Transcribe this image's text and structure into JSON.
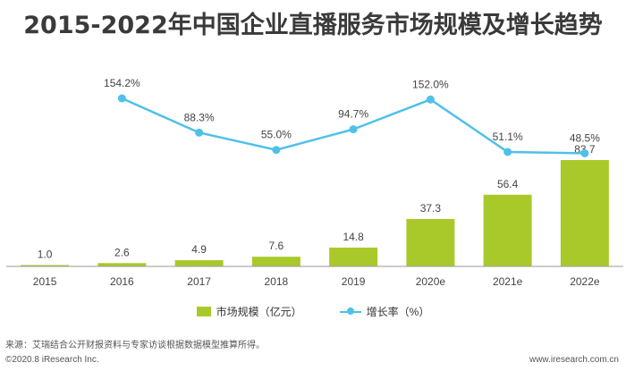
{
  "title": "2015-2022年中国企业直播服务市场规模及增长趋势",
  "chart_data": {
    "type": "bar",
    "categories": [
      "2015",
      "2016",
      "2017",
      "2018",
      "2019",
      "2020e",
      "2021e",
      "2022e"
    ],
    "series": [
      {
        "name": "市场规模（亿元）",
        "type": "bar",
        "values": [
          1.0,
          2.6,
          4.9,
          7.6,
          14.8,
          37.3,
          56.4,
          83.7
        ],
        "labels": [
          "1.0",
          "2.6",
          "4.9",
          "7.6",
          "14.8",
          "37.3",
          "56.4",
          "83.7"
        ]
      },
      {
        "name": "增长率（%）",
        "type": "line",
        "values": [
          null,
          154.2,
          88.3,
          55.0,
          94.7,
          152.0,
          51.1,
          48.5
        ],
        "labels": [
          "",
          "154.2%",
          "88.3%",
          "55.0%",
          "94.7%",
          "152.0%",
          "51.1%",
          "48.5%"
        ]
      }
    ],
    "legend_position": "bottom",
    "grid": false
  },
  "colors": {
    "bar": "#a9c92b",
    "line": "#4fc0ea",
    "axis": "#999999",
    "label": "#444444"
  },
  "legend": {
    "bar_label": "市场规模（亿元）",
    "line_label": "增长率（%）"
  },
  "source": "来源：艾瑞结合公开财报资料与专家访谈根据数据模型推算所得。",
  "footer_left": "©2020.8 iResearch Inc.",
  "footer_right": "www.iresearch.com.cn"
}
